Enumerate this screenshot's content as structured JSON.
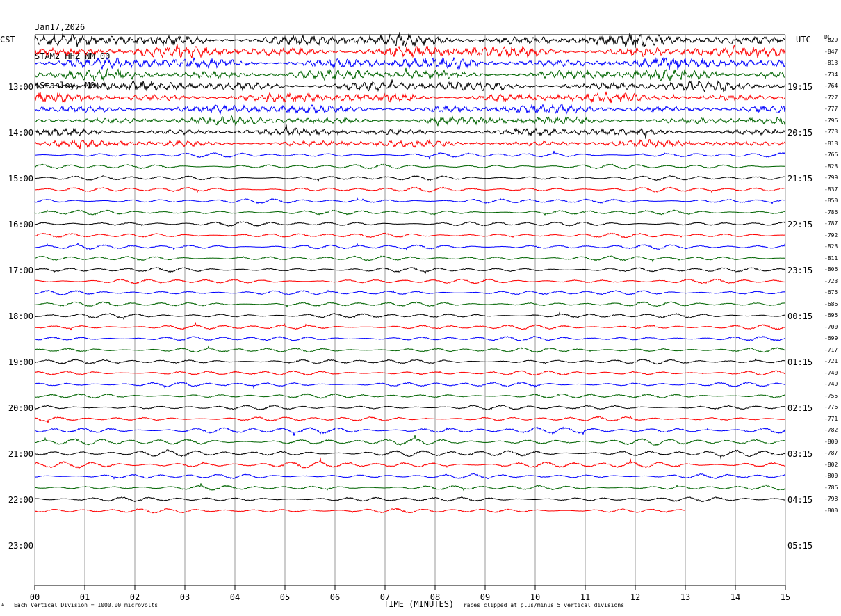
{
  "header": {
    "date": "Jan17,2026",
    "station": "STAM2 HHZ NM 00",
    "location": "(Stanley, MO)"
  },
  "labels": {
    "left_zone": "CST",
    "right_zone": "UTC",
    "dc_header": "DC",
    "x_axis_title": "TIME (MINUTES)",
    "footer_left": "Each Vertical Division = 1000.00 microvolts",
    "footer_right": "Traces clipped at plus/minus 5 vertical divisions",
    "footer_mark": "A"
  },
  "chart_data": {
    "type": "line",
    "title": "",
    "xlabel": "TIME (MINUTES)",
    "ylabel": "",
    "xlim": [
      0,
      15
    ],
    "x_ticks": [
      "00",
      "01",
      "02",
      "03",
      "04",
      "05",
      "06",
      "07",
      "08",
      "09",
      "10",
      "11",
      "12",
      "13",
      "14",
      "15"
    ],
    "grid": true,
    "colors_cycle": [
      "#000000",
      "#ff0000",
      "#0000ff",
      "#006400"
    ],
    "left_time_labels": [
      "13:00",
      "14:00",
      "15:00",
      "16:00",
      "17:00",
      "18:00",
      "19:00",
      "20:00",
      "21:00",
      "22:00",
      "23:00"
    ],
    "right_time_labels": [
      "19:15",
      "20:15",
      "21:15",
      "22:15",
      "23:15",
      "00:15",
      "01:15",
      "02:15",
      "03:15",
      "04:15",
      "05:15"
    ],
    "trace_count": 42,
    "traces_per_hour": 4,
    "last_trace_end_minute": 13,
    "dc_offsets": [
      "-829",
      "-847",
      "-813",
      "-734",
      "-764",
      "-727",
      "-777",
      "-796",
      "-773",
      "-818",
      "-766",
      "-823",
      "-799",
      "-837",
      "-850",
      "-786",
      "-787",
      "-792",
      "-823",
      "-811",
      "-806",
      "-723",
      "-675",
      "-686",
      "-695",
      "-700",
      "-699",
      "-717",
      "-721",
      "-740",
      "-749",
      "-755",
      "-776",
      "-771",
      "-782",
      "-800",
      "-787",
      "-802",
      "-800",
      "-786",
      "-798",
      "-800"
    ]
  }
}
